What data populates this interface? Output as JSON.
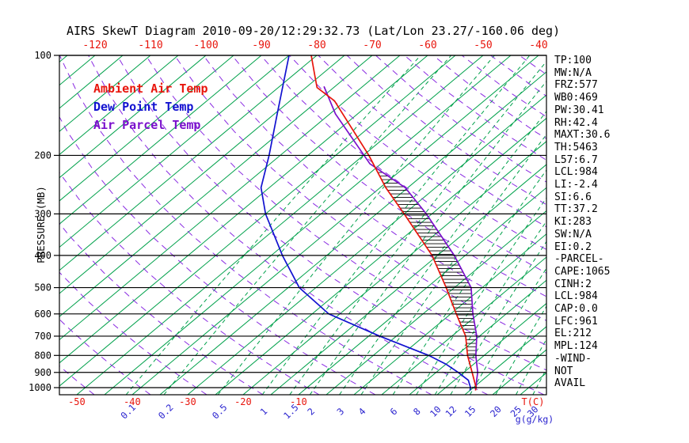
{
  "title": "AIRS SkewT Diagram 2010-09-20/12:29:32.73 (Lat/Lon 23.27/-160.06 deg)",
  "legend": {
    "items": [
      {
        "label": "Ambient Air Temp",
        "color": "#e8150c"
      },
      {
        "label": "Dew Point Temp",
        "color": "#1212d0"
      },
      {
        "label": "Air Parcel Temp",
        "color": "#7a10cc"
      }
    ]
  },
  "stats_panel": {
    "lines": [
      "TP:100",
      "MW:N/A",
      "FRZ:577",
      "WB0:469",
      "PW:30.41",
      "RH:42.4",
      "MAXT:30.6",
      "TH:5463",
      "L57:6.7",
      "LCL:984",
      "LI:-2.4",
      "SI:6.6",
      "TT:37.2",
      "KI:283",
      "SW:N/A",
      "EI:0.2",
      "-PARCEL-",
      "CAPE:1065",
      "CINH:2",
      "LCL:984",
      "CAP:0.0",
      "LFC:961",
      "EL:212",
      "MPL:124",
      "-WIND-",
      "NOT",
      "AVAIL"
    ]
  },
  "axes": {
    "pressure_label": "PRESSURE (MB)",
    "pressure_ticks": [
      100,
      200,
      300,
      400,
      500,
      600,
      700,
      800,
      900,
      1000
    ],
    "top_temp_ticks": [
      -120,
      -110,
      -100,
      -90,
      -80,
      -70,
      -60,
      -50,
      -40
    ],
    "bottom_temp_ticks": [
      -50,
      -40,
      -30,
      -20,
      -10
    ],
    "temp_unit_label": "T(C)",
    "mixing_ratio_ticks": [
      0.1,
      0.2,
      0.5,
      1,
      1.5,
      2,
      3,
      4,
      6,
      8,
      10,
      12,
      15,
      20,
      25,
      30
    ],
    "mixing_unit_label": "g(g/kg)",
    "temp_label_color": "#e8150c",
    "mixing_label_color": "#2a23cf",
    "pressure_label_color": "#000000"
  },
  "chart_data": {
    "type": "line",
    "subtype": "skewt_log_p_sounding",
    "title": "AIRS SkewT Diagram 2010-09-20/12:29:32.73 (Lat/Lon 23.27/-160.06 deg)",
    "ylabel": "PRESSURE (MB)",
    "xlabel": "T(C)",
    "pressure_range_mb": [
      100,
      1050
    ],
    "top_axis_temp_range_c": [
      -120,
      -40
    ],
    "grid": {
      "isotherm_step_c": 5,
      "isotherm_color": "#00a14b",
      "dry_adiabat_step_c": 10,
      "dry_adiabat_range_c": [
        -50,
        175
      ],
      "dry_adiabat_color": "#8a2be2",
      "mixing_ratio_lines_g_kg": [
        0.1,
        0.2,
        0.5,
        1,
        1.5,
        2,
        3,
        4,
        6,
        8,
        10,
        12,
        15,
        20,
        25,
        30
      ],
      "mixing_ratio_color": "#00a14b",
      "pressure_gridline_color": "#000000"
    },
    "series": [
      {
        "name": "Ambient Air Temp",
        "color": "#e8150c",
        "points": [
          [
            100,
            -81
          ],
          [
            115,
            -76
          ],
          [
            125,
            -73
          ],
          [
            137,
            -67
          ],
          [
            200,
            -49
          ],
          [
            250,
            -39
          ],
          [
            300,
            -30
          ],
          [
            400,
            -16
          ],
          [
            500,
            -6.5
          ],
          [
            600,
            1
          ],
          [
            700,
            7.5
          ],
          [
            800,
            12
          ],
          [
            900,
            16.5
          ],
          [
            1000,
            20.5
          ],
          [
            1020,
            21
          ]
        ]
      },
      {
        "name": "Dew Point Temp",
        "color": "#1212d0",
        "points": [
          [
            100,
            -85
          ],
          [
            150,
            -74.5
          ],
          [
            200,
            -67
          ],
          [
            250,
            -61.5
          ],
          [
            300,
            -55
          ],
          [
            400,
            -43
          ],
          [
            500,
            -33
          ],
          [
            600,
            -22
          ],
          [
            700,
            -8
          ],
          [
            800,
            5
          ],
          [
            850,
            10
          ],
          [
            900,
            14
          ],
          [
            950,
            17.5
          ],
          [
            1000,
            19.5
          ],
          [
            1020,
            20
          ]
        ]
      },
      {
        "name": "Air Parcel Temp",
        "color": "#7a10cc",
        "points": [
          [
            124,
            -72
          ],
          [
            150,
            -64
          ],
          [
            212,
            -47
          ],
          [
            250,
            -35.5
          ],
          [
            300,
            -26
          ],
          [
            400,
            -12
          ],
          [
            500,
            -2
          ],
          [
            600,
            4
          ],
          [
            700,
            9.5
          ],
          [
            800,
            13.5
          ],
          [
            900,
            17.5
          ],
          [
            950,
            19
          ],
          [
            1000,
            20.5
          ]
        ]
      }
    ],
    "cape_hatch": {
      "p_top_mb": 212,
      "p_bottom_mb": 830,
      "color": "#000000"
    }
  }
}
